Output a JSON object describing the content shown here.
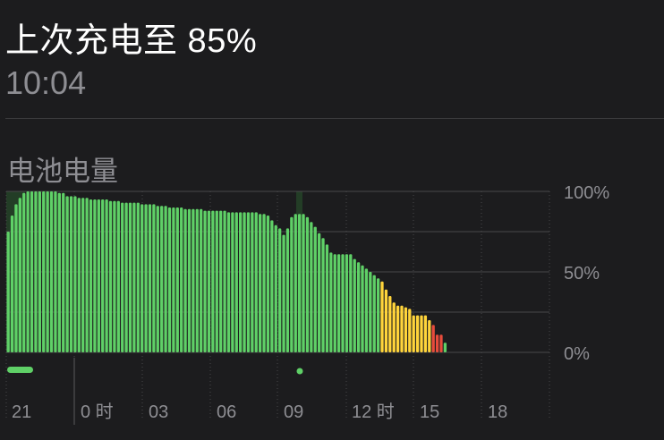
{
  "header": {
    "last_charged_label": "上次充电至 85%",
    "last_charged_time": "10:04"
  },
  "section": {
    "battery_level_label": "电池电量"
  },
  "colors": {
    "background": "#1c1c1e",
    "bar_green": "#5fd067",
    "bar_yellow": "#ffd43b",
    "bar_red": "#e74c3c",
    "charging_band": "#2a5a2d",
    "grid": "#48484a",
    "label": "#8e8e93"
  },
  "chart_data": {
    "type": "bar",
    "title": "电池电量",
    "ylabel": "",
    "xlabel": "",
    "ylim": [
      0,
      100
    ],
    "y_ticks": [
      "100%",
      "50%",
      "0%"
    ],
    "x_tick_labels": [
      "21",
      "0 时",
      "03",
      "06",
      "09",
      "12 时",
      "15",
      "18"
    ],
    "values": [
      75,
      85,
      92,
      96,
      99,
      100,
      100,
      100,
      100,
      100,
      100,
      100,
      100,
      99,
      99,
      97,
      97,
      97,
      96,
      96,
      96,
      95,
      95,
      95,
      95,
      95,
      94,
      94,
      94,
      93,
      93,
      93,
      93,
      93,
      92,
      92,
      92,
      92,
      91,
      91,
      91,
      90,
      90,
      90,
      90,
      89,
      89,
      89,
      89,
      89,
      88,
      88,
      88,
      88,
      88,
      88,
      87,
      87,
      87,
      87,
      87,
      87,
      87,
      87,
      86,
      86,
      85,
      82,
      79,
      77,
      73,
      77,
      84,
      86,
      86,
      86,
      84,
      81,
      78,
      74,
      71,
      67,
      62,
      61,
      61,
      61,
      61,
      61,
      58,
      56,
      54,
      52,
      50,
      48,
      46,
      44,
      39,
      35,
      31,
      29,
      29,
      28,
      27,
      23,
      23,
      23,
      23,
      20,
      17,
      11,
      11,
      6
    ],
    "level_colors": [
      "green",
      "green",
      "green",
      "green",
      "green",
      "green",
      "green",
      "green",
      "green",
      "green",
      "green",
      "green",
      "green",
      "green",
      "green",
      "green",
      "green",
      "green",
      "green",
      "green",
      "green",
      "green",
      "green",
      "green",
      "green",
      "green",
      "green",
      "green",
      "green",
      "green",
      "green",
      "green",
      "green",
      "green",
      "green",
      "green",
      "green",
      "green",
      "green",
      "green",
      "green",
      "green",
      "green",
      "green",
      "green",
      "green",
      "green",
      "green",
      "green",
      "green",
      "green",
      "green",
      "green",
      "green",
      "green",
      "green",
      "green",
      "green",
      "green",
      "green",
      "green",
      "green",
      "green",
      "green",
      "green",
      "green",
      "green",
      "green",
      "green",
      "green",
      "green",
      "green",
      "green",
      "green",
      "green",
      "green",
      "green",
      "green",
      "green",
      "green",
      "green",
      "green",
      "green",
      "green",
      "green",
      "green",
      "green",
      "green",
      "green",
      "green",
      "green",
      "green",
      "green",
      "green",
      "green",
      "yellow",
      "yellow",
      "yellow",
      "yellow",
      "yellow",
      "yellow",
      "yellow",
      "yellow",
      "yellow",
      "yellow",
      "yellow",
      "yellow",
      "yellow",
      "red",
      "red",
      "red"
    ],
    "grid": true
  }
}
